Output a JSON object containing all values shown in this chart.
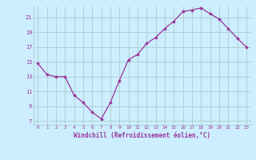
{
  "x": [
    0,
    1,
    2,
    3,
    4,
    5,
    6,
    7,
    8,
    9,
    10,
    11,
    12,
    13,
    14,
    15,
    16,
    17,
    18,
    19,
    20,
    21,
    22,
    23
  ],
  "y": [
    14.8,
    13.3,
    13.0,
    13.0,
    10.5,
    9.5,
    8.2,
    7.3,
    9.5,
    12.5,
    15.3,
    16.0,
    17.5,
    18.3,
    19.5,
    20.5,
    21.8,
    22.0,
    22.3,
    21.5,
    20.8,
    19.5,
    18.2,
    17.0
  ],
  "line_color": "#993399",
  "marker": "D",
  "marker_size": 1.8,
  "line_width": 0.9,
  "bg_color": "#cceeff",
  "grid_color": "#aacccc",
  "tick_color": "#993399",
  "label_color": "#993399",
  "xlim": [
    -0.5,
    23.5
  ],
  "ylim": [
    6.5,
    22.5
  ],
  "yticks": [
    7,
    9,
    11,
    13,
    15,
    17,
    19,
    21
  ],
  "xticks": [
    0,
    1,
    2,
    3,
    4,
    5,
    6,
    7,
    8,
    9,
    10,
    11,
    12,
    13,
    14,
    15,
    16,
    17,
    18,
    19,
    20,
    21,
    22,
    23
  ],
  "xlabel": "Windchill (Refroidissement éolien,°C)",
  "font_family": "monospace"
}
